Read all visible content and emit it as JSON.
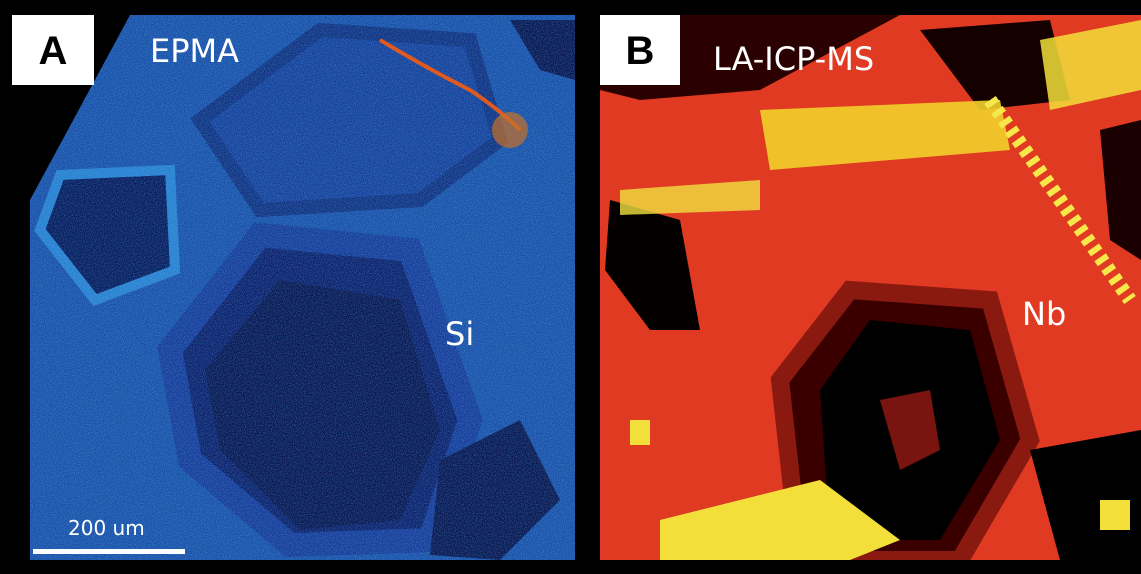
{
  "panels": [
    {
      "label": "A",
      "method": "EPMA",
      "element": "Si",
      "scale_bar": "200 um"
    },
    {
      "label": "B",
      "method": "LA-ICP-MS",
      "element": "Nb"
    }
  ]
}
